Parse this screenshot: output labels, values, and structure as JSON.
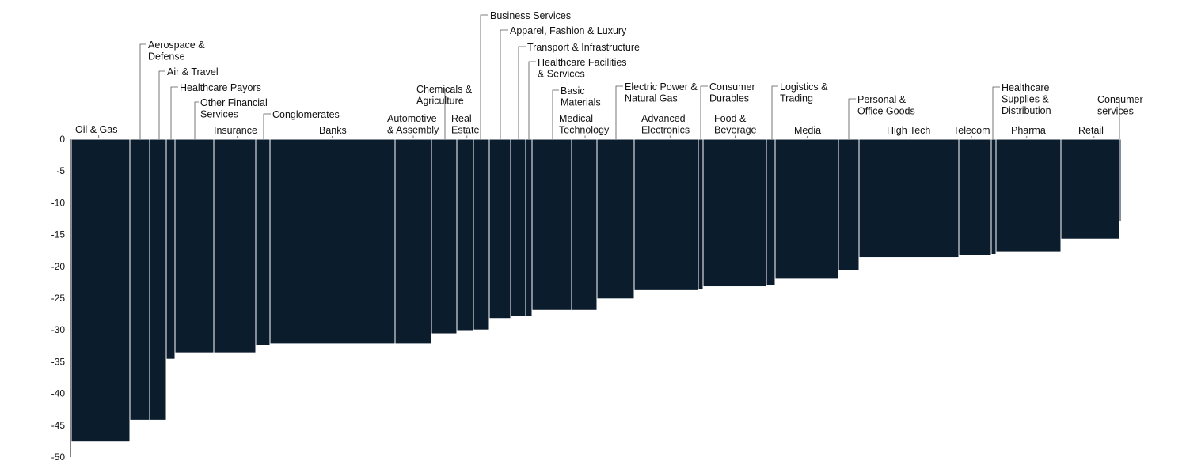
{
  "chart_data": {
    "type": "bar",
    "variant": "variable-width (marimekko-style) bars",
    "title": "",
    "xlabel": "",
    "ylabel": "",
    "ylim": [
      -50,
      0
    ],
    "yticks": [
      0,
      -5,
      -10,
      -15,
      -20,
      -25,
      -30,
      -35,
      -40,
      -45,
      -50
    ],
    "grid": false,
    "bar_color": "#0b1c2c",
    "segments": [
      {
        "label": "Oil & Gas",
        "value": -47.6
      },
      {
        "label": "Aerospace & Defense",
        "value": -44.2
      },
      {
        "label": "Air & Travel",
        "value": -44.2
      },
      {
        "label": "Healthcare Payors",
        "value": -34.6
      },
      {
        "label": "Other Financial Services",
        "value": -33.6
      },
      {
        "label": "Insurance",
        "value": -33.6
      },
      {
        "label": "Conglomerates",
        "value": -32.4
      },
      {
        "label": "Banks",
        "value": -32.2
      },
      {
        "label": "Automotive & Assembly",
        "value": -32.2
      },
      {
        "label": "Chemicals & Agriculture",
        "value": -30.6
      },
      {
        "label": "Real Estate",
        "value": -30.1
      },
      {
        "label": "",
        "value": -30.0
      },
      {
        "label": "Business Services",
        "value": -28.2
      },
      {
        "label": "Apparel, Fashion & Luxury",
        "value": -27.8
      },
      {
        "label": "Transport & Infrastructure",
        "value": -27.8
      },
      {
        "label": "Healthcare Facilities & Services",
        "value": -26.9
      },
      {
        "label": "Basic Materials",
        "value": -26.9
      },
      {
        "label": "Medical Technology",
        "value": -25.1
      },
      {
        "label": "Electric Power & Natural Gas",
        "value": -23.8
      },
      {
        "label": "Advanced Electronics",
        "value": -23.7
      },
      {
        "label": "Consumer Durables",
        "value": -23.2
      },
      {
        "label": "Food & Beverage",
        "value": -23.0
      },
      {
        "label": "Logistics & Trading",
        "value": -22.0
      },
      {
        "label": "Media",
        "value": -20.6
      },
      {
        "label": "Personal & Office Goods",
        "value": -18.6
      },
      {
        "label": "High Tech",
        "value": -18.3
      },
      {
        "label": "Telecom",
        "value": -18.1
      },
      {
        "label": "Healthcare Supplies & Distribution",
        "value": -17.8
      },
      {
        "label": "Pharma",
        "value": -15.7
      },
      {
        "label": "Retail",
        "value": -12.9
      },
      {
        "label": "Consumer services",
        "value": -11.0
      }
    ],
    "category_labels": [
      {
        "lines": [
          "Oil & Gas"
        ]
      },
      {
        "lines": [
          "Aerospace &",
          "Defense"
        ]
      },
      {
        "lines": [
          "Air & Travel"
        ]
      },
      {
        "lines": [
          "Healthcare Payors"
        ]
      },
      {
        "lines": [
          "Other Financial",
          "Services"
        ]
      },
      {
        "lines": [
          "Insurance"
        ]
      },
      {
        "lines": [
          "Conglomerates"
        ]
      },
      {
        "lines": [
          "Banks"
        ]
      },
      {
        "lines": [
          "Automotive",
          "& Assembly"
        ]
      },
      {
        "lines": [
          "Chemicals &",
          "Agriculture"
        ]
      },
      {
        "lines": [
          "Real",
          "Estate"
        ]
      },
      {
        "lines": [
          "Business Services"
        ]
      },
      {
        "lines": [
          "Apparel, Fashion & Luxury"
        ]
      },
      {
        "lines": [
          "Transport & Infrastructure"
        ]
      },
      {
        "lines": [
          "Healthcare Facilities",
          "& Services"
        ]
      },
      {
        "lines": [
          "Basic",
          "Materials"
        ]
      },
      {
        "lines": [
          "Medical",
          "Technology"
        ]
      },
      {
        "lines": [
          "Electric Power &",
          "Natural Gas"
        ]
      },
      {
        "lines": [
          "Advanced",
          "Electronics"
        ]
      },
      {
        "lines": [
          "Consumer",
          "Durables"
        ]
      },
      {
        "lines": [
          "Food &",
          "Beverage"
        ]
      },
      {
        "lines": [
          "Logistics &",
          "Trading"
        ]
      },
      {
        "lines": [
          "Media"
        ]
      },
      {
        "lines": [
          "Personal &",
          "Office Goods"
        ]
      },
      {
        "lines": [
          "High Tech"
        ]
      },
      {
        "lines": [
          "Telecom"
        ]
      },
      {
        "lines": [
          "Healthcare",
          "Supplies &",
          "Distribution"
        ]
      },
      {
        "lines": [
          "Pharma"
        ]
      },
      {
        "lines": [
          "Retail"
        ]
      },
      {
        "lines": [
          "Consumer",
          "services"
        ]
      }
    ]
  }
}
